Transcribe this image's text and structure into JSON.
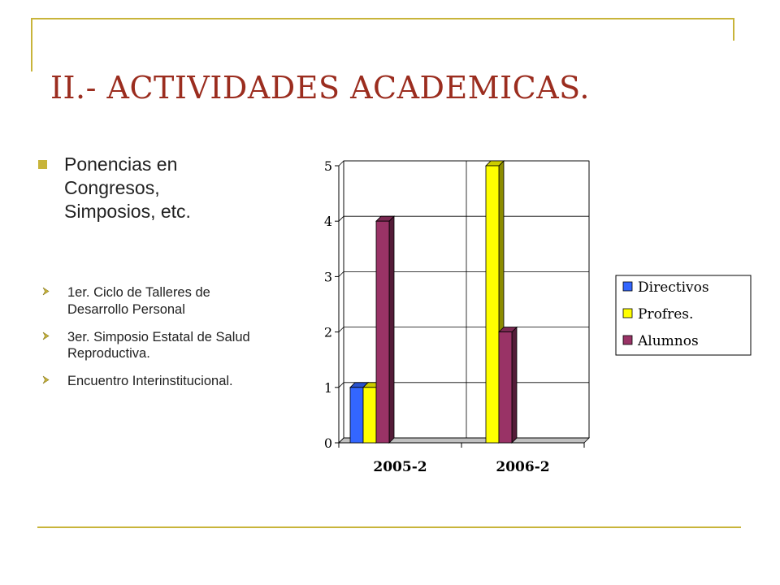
{
  "slide": {
    "title": "II.- ACTIVIDADES ACADEMICAS.",
    "main_bullet": "Ponencias en Congresos, Simposios, etc.",
    "sub_bullets": [
      "1er. Ciclo de Talleres de Desarrollo Personal",
      "3er. Simposio Estatal de Salud Reproductiva.",
      "Encuentro Interinstitucional."
    ],
    "accent_color": "#c8b43a",
    "title_color": "#9b2d1f"
  },
  "chart_data": {
    "type": "bar",
    "categories": [
      "2005-2",
      "2006-2"
    ],
    "series": [
      {
        "name": "Directivos",
        "values": [
          1,
          0
        ],
        "color": "#3366ff"
      },
      {
        "name": "Profres.",
        "values": [
          1,
          5
        ],
        "color": "#ffff00"
      },
      {
        "name": "Alumnos",
        "values": [
          4,
          2
        ],
        "color": "#993366"
      }
    ],
    "ylim": [
      0,
      5
    ],
    "yticks": [
      0,
      1,
      2,
      3,
      4,
      5
    ],
    "grid": true,
    "legend": "right",
    "style": "3d-column"
  }
}
